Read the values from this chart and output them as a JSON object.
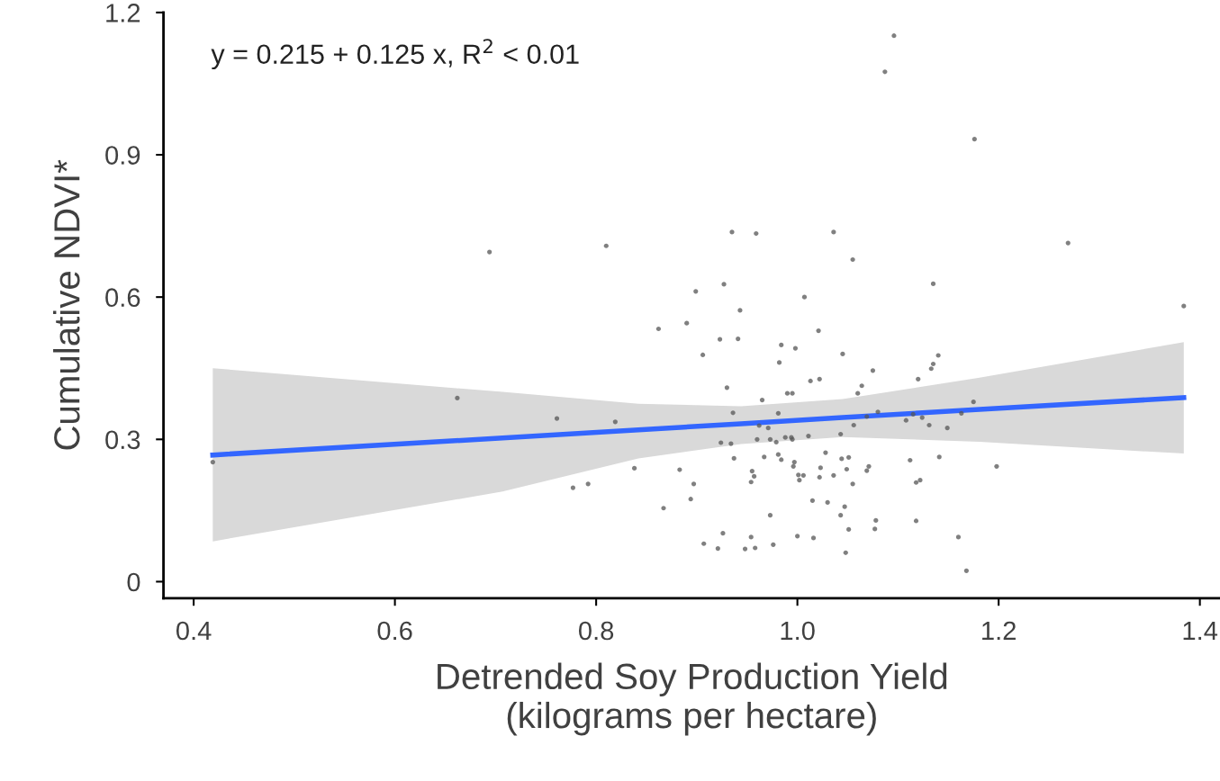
{
  "chart_data": {
    "type": "scatter",
    "xlabel": "Detrended Soy Production Yield\n(kilograms per hectare)",
    "ylabel": "Cumulative NDVI*",
    "annotations": [
      "y = 0.215 + 0.125 x, R$^{2}$ < 0.01"
    ],
    "xlim": [
      0.37,
      1.42
    ],
    "ylim": [
      -0.035,
      1.2
    ],
    "xticks": [
      0.4,
      0.6,
      0.8,
      {
        "value": 1.0,
        "label": "1.0"
      },
      1.2,
      1.4
    ],
    "yticks": [
      0,
      0.3,
      0.6,
      0.9,
      1.2
    ],
    "grid": false,
    "legend": false,
    "marker": "circle",
    "series": [
      {
        "color": "#555555",
        "x": [
          0.935,
          0.959,
          1.036,
          1.055,
          0.927,
          0.899,
          1.007,
          0.943,
          0.89,
          0.862,
          0.923,
          0.941,
          1.021,
          0.984,
          0.998,
          1.045,
          0.906,
          0.982,
          1.075,
          1.013,
          1.022,
          1.064,
          0.93,
          0.99,
          0.995,
          1.06,
          1.269,
          1.135,
          1.14,
          1.135,
          1.133,
          1.12,
          0.965,
          0.936,
          0.981,
          0.962,
          0.971,
          1.08,
          1.069,
          1.056,
          1.043,
          0.924,
          0.934,
          0.96,
          0.973,
          0.979,
          0.988,
          0.994,
          0.995,
          1.011,
          0.937,
          0.967,
          0.981,
          0.984,
          1.028,
          1.044,
          1.051,
          0.997,
          0.996,
          1.023,
          1.049,
          1.071,
          1.069,
          1.036,
          1.001,
          1.006,
          1.002,
          1.022,
          0.955,
          0.957,
          0.954,
          0.838,
          0.883,
          0.897,
          1.055,
          0.894,
          1.015,
          1.03,
          0.867,
          1.047,
          0.973,
          1.043,
          1.078,
          1.077,
          1.051,
          0.926,
          0.954,
          1.0,
          1.016,
          0.907,
          0.976,
          0.921,
          0.948,
          0.958,
          1.048,
          1.175,
          1.163,
          1.115,
          1.108,
          1.124,
          1.131,
          1.149,
          1.112,
          1.141,
          1.198,
          1.118,
          1.122,
          1.118,
          1.16,
          1.168,
          1.096,
          1.087,
          1.176,
          1.384,
          0.694,
          0.81,
          0.662,
          0.761,
          0.819,
          0.419,
          0.777,
          0.792
        ],
        "values": [
          0.737,
          0.734,
          0.737,
          0.679,
          0.627,
          0.612,
          0.6,
          0.572,
          0.545,
          0.533,
          0.511,
          0.512,
          0.529,
          0.499,
          0.492,
          0.48,
          0.478,
          0.462,
          0.445,
          0.423,
          0.427,
          0.413,
          0.409,
          0.397,
          0.397,
          0.397,
          0.714,
          0.628,
          0.477,
          0.459,
          0.449,
          0.427,
          0.383,
          0.356,
          0.355,
          0.329,
          0.324,
          0.358,
          0.348,
          0.33,
          0.311,
          0.293,
          0.291,
          0.3,
          0.3,
          0.294,
          0.304,
          0.304,
          0.3,
          0.307,
          0.26,
          0.263,
          0.268,
          0.257,
          0.272,
          0.259,
          0.262,
          0.252,
          0.243,
          0.24,
          0.237,
          0.243,
          0.234,
          0.224,
          0.225,
          0.224,
          0.214,
          0.22,
          0.233,
          0.222,
          0.21,
          0.239,
          0.236,
          0.206,
          0.206,
          0.174,
          0.171,
          0.167,
          0.155,
          0.158,
          0.14,
          0.14,
          0.129,
          0.111,
          0.11,
          0.102,
          0.094,
          0.096,
          0.092,
          0.08,
          0.078,
          0.07,
          0.069,
          0.071,
          0.061,
          0.379,
          0.355,
          0.353,
          0.34,
          0.346,
          0.33,
          0.324,
          0.256,
          0.263,
          0.243,
          0.209,
          0.214,
          0.128,
          0.094,
          0.023,
          1.151,
          1.075,
          0.933,
          0.581,
          0.695,
          0.708,
          0.387,
          0.344,
          0.337,
          0.252,
          0.198,
          0.206
        ]
      },
      {
        "type": "line",
        "color": "#3366ff",
        "marker": "none",
        "line_style": "solid",
        "x": [
          0.419,
          0.707,
          0.842,
          0.944,
          1.045,
          1.181,
          1.384
        ],
        "values": [
          0.267,
          0.303,
          0.32,
          0.333,
          0.346,
          0.363,
          0.388
        ],
        "lower": [
          0.085,
          0.19,
          0.26,
          0.29,
          0.305,
          0.295,
          0.27
        ],
        "upper": [
          0.45,
          0.4,
          0.375,
          0.37,
          0.385,
          0.43,
          0.505
        ]
      }
    ]
  }
}
